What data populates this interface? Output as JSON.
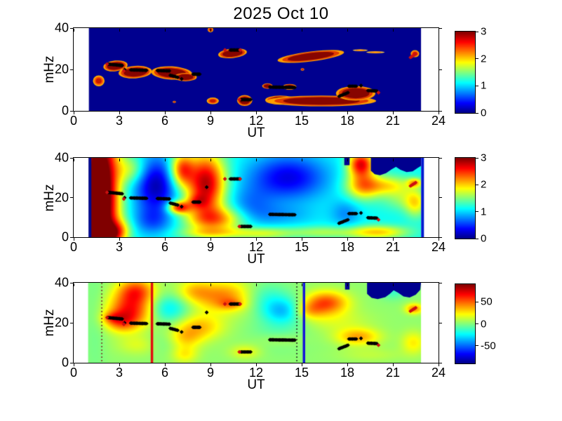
{
  "figure": {
    "background": "#ffffff"
  },
  "chart_data": {
    "type": "heatmap",
    "title": "2025 Oct 10",
    "colormap": "jet",
    "x": {
      "label": "UT",
      "range": [
        0,
        24
      ],
      "ticks": [
        0,
        3,
        6,
        9,
        12,
        15,
        18,
        21,
        24
      ]
    },
    "y": {
      "label": "mHz",
      "range": [
        0,
        40
      ],
      "ticks": [
        0,
        20,
        40
      ]
    },
    "panels": [
      {
        "name": "wave-power-detections",
        "xlabel": "UT",
        "ylabel": "mHz",
        "xlim": [
          0,
          24
        ],
        "ylim": [
          0,
          40
        ],
        "xticks": [
          0,
          3,
          6,
          9,
          12,
          15,
          18,
          21,
          24
        ],
        "yticks": [
          0,
          20,
          40
        ],
        "caxis": [
          0,
          3
        ],
        "cbar_ticks": [
          3,
          2,
          1,
          0
        ],
        "render": "blobs",
        "background_color": "#00008f",
        "data_trange": [
          1.0,
          22.85
        ],
        "palette": {
          "default": [
            [
              1.0,
              "#ffa000"
            ],
            [
              0.86,
              "#e03c00"
            ],
            [
              0.7,
              "#870500"
            ]
          ],
          "small": [
            [
              1.0,
              "#ffb400"
            ],
            [
              0.78,
              "#ff5500"
            ],
            [
              0.5,
              "#c41a00"
            ]
          ],
          "thin": [
            [
              1.0,
              "#ffcc40"
            ],
            [
              0.65,
              "#ff8800"
            ]
          ]
        },
        "blobs": [
          {
            "t": 1.65,
            "f": 14.5,
            "rt": 0.38,
            "rf": 2.6,
            "kind": "small"
          },
          {
            "t": 2.75,
            "f": 21.7,
            "rt": 0.8,
            "rf": 2.6,
            "rot": -6
          },
          {
            "t": 4.05,
            "f": 18.7,
            "rt": 1.1,
            "rf": 3.0,
            "rot": -4
          },
          {
            "t": 6.45,
            "f": 18.3,
            "rt": 1.35,
            "rf": 3.2,
            "rot": 3
          },
          {
            "t": 7.35,
            "f": 16.3,
            "rt": 0.75,
            "rf": 2.0
          },
          {
            "t": 10.45,
            "f": 27.8,
            "rt": 0.95,
            "rf": 2.3,
            "rot": -6
          },
          {
            "t": 9.0,
            "f": 39.2,
            "rt": 0.18,
            "rf": 1.2,
            "kind": "small"
          },
          {
            "t": 9.15,
            "f": 4.8,
            "rt": 0.4,
            "rf": 1.6,
            "kind": "small"
          },
          {
            "t": 11.25,
            "f": 5.0,
            "rt": 0.5,
            "rf": 2.6
          },
          {
            "t": 12.75,
            "f": 12.0,
            "rt": 0.35,
            "rf": 1.3
          },
          {
            "t": 14.2,
            "f": 11.6,
            "rt": 0.45,
            "rf": 1.4
          },
          {
            "t": 15.6,
            "f": 26.3,
            "rt": 2.2,
            "rf": 2.4,
            "rot": -7
          },
          {
            "t": 13.6,
            "f": 5.2,
            "rt": 1.0,
            "rf": 2.2
          },
          {
            "t": 16.3,
            "f": 4.8,
            "rt": 3.6,
            "rf": 2.6
          },
          {
            "t": 18.55,
            "f": 8.5,
            "rt": 1.3,
            "rf": 3.5
          },
          {
            "t": 18.85,
            "f": 29.3,
            "rt": 0.5,
            "rf": 0.45,
            "kind": "thin"
          },
          {
            "t": 19.85,
            "f": 28.3,
            "rt": 0.6,
            "rf": 0.5,
            "kind": "thin"
          },
          {
            "t": 22.45,
            "f": 27.6,
            "rt": 0.28,
            "rf": 1.7,
            "kind": "small"
          },
          {
            "t": 6.62,
            "f": 4.3,
            "rt": 0.1,
            "rf": 0.5,
            "kind": "small"
          },
          {
            "t": 15.05,
            "f": 20.0,
            "rt": 0.12,
            "rf": 0.6,
            "kind": "small"
          }
        ],
        "vlines": [],
        "nodata": []
      },
      {
        "name": "wave-power-spectrum",
        "xlabel": "UT",
        "ylabel": "mHz",
        "xlim": [
          0,
          24
        ],
        "ylim": [
          0,
          40
        ],
        "xticks": [
          0,
          3,
          6,
          9,
          12,
          15,
          18,
          21,
          24
        ],
        "yticks": [
          0,
          20,
          40
        ],
        "caxis": [
          0,
          3
        ],
        "cbar_ticks": [
          3,
          2,
          1,
          0
        ],
        "render": "gaussian",
        "base": 1.15,
        "data_trange": [
          1.0,
          22.85
        ],
        "gaussians": [
          [
            1.7,
            20,
            0.85,
            30,
            2.6
          ],
          [
            2.0,
            1.5,
            0.5,
            2.5,
            0.9
          ],
          [
            2.9,
            3,
            0.6,
            4,
            0.8
          ],
          [
            3.8,
            34,
            0.7,
            5,
            0.55
          ],
          [
            5.4,
            26,
            1.0,
            10,
            -1.0
          ],
          [
            5.2,
            8,
            0.9,
            5,
            -0.45
          ],
          [
            6.9,
            15,
            0.5,
            2.2,
            1.4
          ],
          [
            7.1,
            34,
            0.55,
            6,
            1.2
          ],
          [
            8.7,
            27,
            0.9,
            11,
            1.7
          ],
          [
            9.4,
            9,
            1.4,
            4.5,
            1.0
          ],
          [
            9.0,
            2,
            1.5,
            2,
            0.5
          ],
          [
            8.1,
            18,
            0.5,
            2.5,
            0.5
          ],
          [
            11.6,
            15,
            1.1,
            7,
            -0.4
          ],
          [
            14.1,
            30,
            1.8,
            8,
            -0.85
          ],
          [
            13.6,
            11,
            1.6,
            4,
            -0.25
          ],
          [
            12.4,
            2,
            1.4,
            2.2,
            0.6
          ],
          [
            16.3,
            2.5,
            1.6,
            2.2,
            0.45
          ],
          [
            18.9,
            37,
            0.6,
            4.5,
            1.5
          ],
          [
            19.0,
            26,
            0.8,
            5,
            0.95
          ],
          [
            20.7,
            26,
            1.1,
            3.5,
            0.7
          ],
          [
            21.6,
            19,
            0.9,
            4,
            0.35
          ],
          [
            20.0,
            2.5,
            1.4,
            2.4,
            0.85
          ],
          [
            17.9,
            12,
            0.7,
            5,
            -0.35
          ],
          [
            22.5,
            17,
            0.5,
            5,
            0.65
          ],
          [
            22.45,
            27.5,
            0.35,
            1.6,
            0.8
          ]
        ],
        "nodata": [
          [
            [
              17.8,
              40
            ],
            [
              17.8,
              36.3
            ],
            [
              18.15,
              36.3
            ],
            [
              18.15,
              40
            ]
          ],
          [
            [
              19.55,
              40
            ],
            [
              19.55,
              33.5
            ],
            [
              19.8,
              31.8
            ],
            [
              20.15,
              31.2
            ],
            [
              20.55,
              32.3
            ],
            [
              20.9,
              34.2
            ],
            [
              21.2,
              35.5
            ],
            [
              21.5,
              34.0
            ],
            [
              21.9,
              32.8
            ],
            [
              22.3,
              33.2
            ],
            [
              22.6,
              34.8
            ],
            [
              22.95,
              36.5
            ],
            [
              22.95,
              40
            ]
          ]
        ],
        "vlines": [
          {
            "t": 1.07,
            "w": 4,
            "color": "#000a8f"
          },
          {
            "t": 22.95,
            "w": 4,
            "color": "#0018cf"
          }
        ]
      },
      {
        "name": "cross-phase",
        "xlabel": "UT",
        "ylabel": "mHz",
        "xlim": [
          0,
          24
        ],
        "ylim": [
          0,
          40
        ],
        "xticks": [
          0,
          3,
          6,
          9,
          12,
          15,
          18,
          21,
          24
        ],
        "yticks": [
          0,
          20,
          40
        ],
        "caxis": [
          -90,
          90
        ],
        "cbar_ticks": [
          50,
          0,
          -50
        ],
        "render": "gaussian",
        "base": 3,
        "data_trange": [
          0.95,
          22.85
        ],
        "gaussians": [
          [
            1.4,
            20,
            0.5,
            25,
            -5
          ],
          [
            3.7,
            26,
            1.0,
            6,
            58
          ],
          [
            4.1,
            36,
            0.85,
            4.5,
            48
          ],
          [
            3.1,
            20.5,
            0.7,
            3.5,
            30
          ],
          [
            2.5,
            22.5,
            0.45,
            2,
            22
          ],
          [
            4.3,
            9,
            1.0,
            3.5,
            14
          ],
          [
            6.3,
            27,
            0.9,
            5,
            -28
          ],
          [
            7.3,
            4,
            0.6,
            3,
            20
          ],
          [
            7.3,
            12,
            0.8,
            4,
            25
          ],
          [
            8.3,
            18,
            1.1,
            4.5,
            30
          ],
          [
            9.9,
            33,
            1.4,
            5.5,
            42
          ],
          [
            10.35,
            29.5,
            0.55,
            1.8,
            20
          ],
          [
            7.9,
            36,
            0.8,
            4,
            22
          ],
          [
            12.5,
            33,
            1.1,
            5,
            -18
          ],
          [
            13.8,
            26,
            1.0,
            4.5,
            -35
          ],
          [
            13.5,
            15,
            1.3,
            6,
            -10
          ],
          [
            11.3,
            5.5,
            0.7,
            2.5,
            18
          ],
          [
            13.6,
            11.5,
            1.1,
            2.5,
            10
          ],
          [
            16.6,
            30,
            1.0,
            4,
            52
          ],
          [
            15.4,
            26,
            0.7,
            3,
            25
          ],
          [
            18.7,
            13,
            1.0,
            3,
            35
          ],
          [
            21.0,
            36,
            0.6,
            3,
            -16
          ],
          [
            22.4,
            27,
            0.4,
            1.8,
            40
          ],
          [
            22.35,
            10,
            0.55,
            4,
            22
          ],
          [
            17.2,
            21,
            1.6,
            4,
            12
          ],
          [
            19.5,
            4,
            1.5,
            2.5,
            8
          ],
          [
            6.0,
            10,
            0.9,
            4,
            -10
          ]
        ],
        "nodata": [
          [
            [
              17.85,
              40
            ],
            [
              17.85,
              36.6
            ],
            [
              18.15,
              36.6
            ],
            [
              18.15,
              40
            ]
          ],
          [
            [
              19.3,
              40
            ],
            [
              19.3,
              34.5
            ],
            [
              19.6,
              32.5
            ],
            [
              20.0,
              31.8
            ],
            [
              20.5,
              32.8
            ],
            [
              20.8,
              34.5
            ],
            [
              21.05,
              36.2
            ],
            [
              21.35,
              35.0
            ],
            [
              21.7,
              33.2
            ],
            [
              22.1,
              32.6
            ],
            [
              22.5,
              34.0
            ],
            [
              22.8,
              36.5
            ],
            [
              22.85,
              40
            ]
          ]
        ],
        "vlines": [
          {
            "t": 1.85,
            "w": 1.5,
            "color": "#7a2a20",
            "dash": [
              2,
              3
            ]
          },
          {
            "t": 5.15,
            "w": 3.5,
            "color": "#e01010"
          },
          {
            "t": 14.68,
            "w": 1.5,
            "color": "#202020",
            "dash": [
              2,
              3
            ]
          },
          {
            "t": 15.15,
            "w": 3.5,
            "color": "#1515d8"
          }
        ]
      }
    ],
    "markers": {
      "marker_shape": "diamond",
      "black_color": "#000000",
      "red_color": "#cc1111",
      "black": [
        [
          2.25,
          3.2,
          22.6,
          21.9
        ],
        [
          3.35,
          3.35,
          19.9,
          19.9
        ],
        [
          3.75,
          4.8,
          19.8,
          19.6
        ],
        [
          5.5,
          6.3,
          19.5,
          19.3
        ],
        [
          6.35,
          6.85,
          17.2,
          16.2
        ],
        [
          7.1,
          7.1,
          15.4,
          15.4
        ],
        [
          7.85,
          8.3,
          17.7,
          17.7
        ],
        [
          8.75,
          8.75,
          25.2,
          25.2
        ],
        [
          10.3,
          10.9,
          29.4,
          29.4
        ],
        [
          11.0,
          11.65,
          5.4,
          5.4
        ],
        [
          12.9,
          14.55,
          11.5,
          11.3
        ],
        [
          17.45,
          18.05,
          7.0,
          8.8
        ],
        [
          18.1,
          18.6,
          11.9,
          11.9
        ],
        [
          18.9,
          18.9,
          12.2,
          12.2
        ],
        [
          19.35,
          19.95,
          9.8,
          9.6
        ]
      ],
      "black_top_panel_exclude": [
        7
      ],
      "red": [
        [
          2.2,
          2.2,
          22.6,
          22.6
        ],
        [
          3.3,
          3.3,
          19.3,
          19.3
        ],
        [
          9.95,
          9.95,
          29.4,
          29.4
        ],
        [
          10.95,
          10.95,
          29.4,
          29.4
        ],
        [
          10.9,
          10.9,
          5.4,
          5.4
        ],
        [
          20.05,
          20.05,
          8.8,
          8.8
        ],
        [
          22.15,
          22.5,
          25.8,
          27.5
        ]
      ]
    }
  }
}
